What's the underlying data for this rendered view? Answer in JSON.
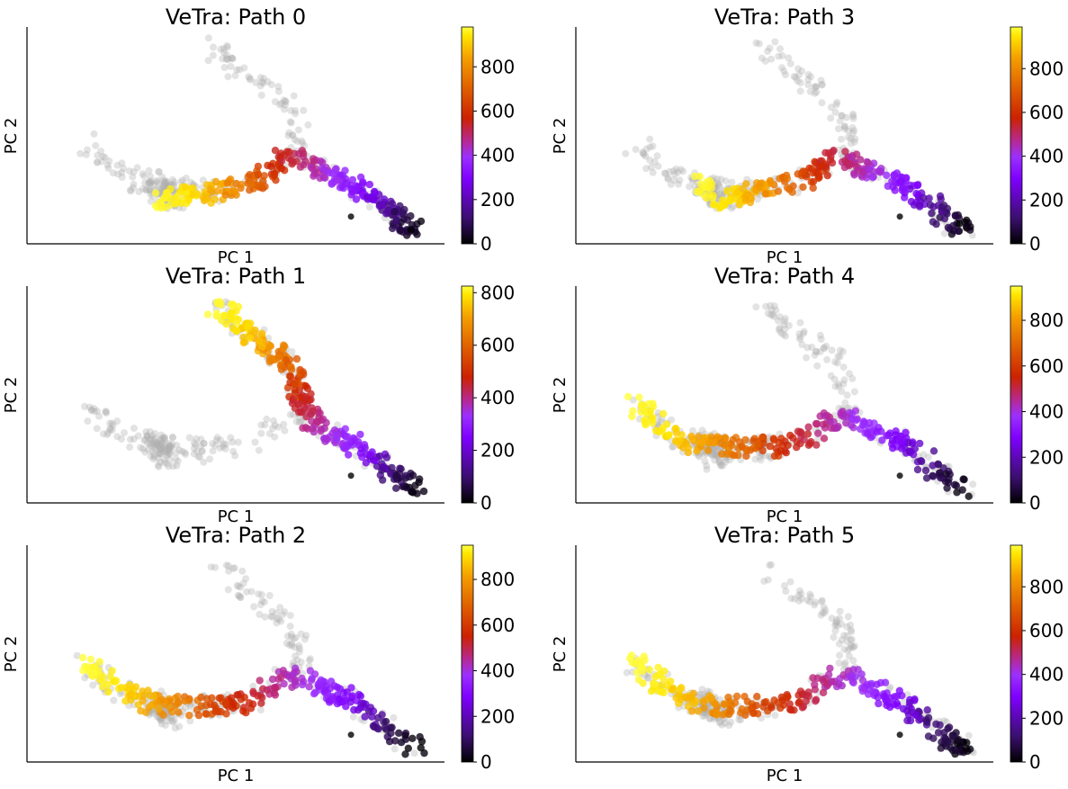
{
  "figure": {
    "colormap": [
      "#000000",
      "#3b0f70",
      "#7f00ff",
      "#9b30ff",
      "#b8288a",
      "#cc2200",
      "#e06000",
      "#f5a000",
      "#ffe600",
      "#ffff40"
    ],
    "background_color": "#b0b0b0",
    "root_color": "#333333"
  },
  "chart_data": [
    {
      "type": "scatter",
      "title": "VeTra: Path 0",
      "xlabel": "PC 1",
      "ylabel": "PC 2",
      "colorbar": {
        "range": [
          0,
          980
        ],
        "ticks": [
          0,
          200,
          400,
          600,
          800
        ]
      },
      "highlight_segments": [
        [
          [
            470,
            252
          ],
          [
            445,
            242
          ],
          [
            430,
            225
          ],
          [
            400,
            205
          ],
          [
            385,
            190
          ],
          [
            365,
            185
          ],
          [
            330,
            165
          ],
          [
            305,
            165
          ],
          [
            280,
            190
          ],
          [
            240,
            200
          ],
          [
            200,
            210
          ],
          [
            160,
            218
          ],
          [
            155,
            223
          ]
        ]
      ]
    },
    {
      "type": "scatter",
      "title": "VeTra: Path 1",
      "xlabel": "PC 1",
      "ylabel": "PC 2",
      "colorbar": {
        "range": [
          0,
          825
        ],
        "ticks": [
          0,
          200,
          400,
          600,
          800
        ]
      },
      "highlight_segments": [
        [
          [
            470,
            252
          ],
          [
            445,
            242
          ],
          [
            430,
            225
          ],
          [
            400,
            205
          ],
          [
            385,
            190
          ],
          [
            350,
            180
          ],
          [
            330,
            150
          ],
          [
            325,
            125
          ],
          [
            315,
            95
          ],
          [
            290,
            80
          ],
          [
            265,
            60
          ],
          [
            245,
            38
          ],
          [
            225,
            25
          ]
        ]
      ]
    },
    {
      "type": "scatter",
      "title": "VeTra: Path 2",
      "xlabel": "PC 1",
      "ylabel": "PC 2",
      "colorbar": {
        "range": [
          0,
          950
        ],
        "ticks": [
          0,
          200,
          400,
          600,
          800
        ]
      },
      "highlight_segments": [
        [
          [
            470,
            252
          ],
          [
            445,
            242
          ],
          [
            430,
            225
          ],
          [
            400,
            205
          ],
          [
            385,
            190
          ],
          [
            365,
            185
          ],
          [
            330,
            165
          ],
          [
            305,
            165
          ],
          [
            280,
            190
          ],
          [
            240,
            200
          ],
          [
            170,
            200
          ],
          [
            140,
            195
          ],
          [
            110,
            180
          ],
          [
            85,
            160
          ],
          [
            70,
            145
          ]
        ]
      ]
    },
    {
      "type": "scatter",
      "title": "VeTra: Path 3",
      "xlabel": "PC 1",
      "ylabel": "PC 2",
      "colorbar": {
        "range": [
          0,
          990
        ],
        "ticks": [
          0,
          200,
          400,
          600,
          800
        ]
      },
      "highlight_segments": [
        [
          [
            470,
            252
          ],
          [
            445,
            242
          ],
          [
            430,
            225
          ],
          [
            400,
            205
          ],
          [
            385,
            190
          ],
          [
            365,
            185
          ],
          [
            330,
            165
          ],
          [
            305,
            165
          ],
          [
            280,
            190
          ],
          [
            240,
            200
          ],
          [
            200,
            210
          ],
          [
            175,
            215
          ],
          [
            160,
            205
          ],
          [
            150,
            190
          ]
        ]
      ]
    },
    {
      "type": "scatter",
      "title": "VeTra: Path 4",
      "xlabel": "PC 1",
      "ylabel": "PC 2",
      "colorbar": {
        "range": [
          0,
          950
        ],
        "ticks": [
          0,
          200,
          400,
          600,
          800
        ]
      },
      "highlight_segments": [
        [
          [
            470,
            252
          ],
          [
            445,
            242
          ],
          [
            430,
            225
          ],
          [
            400,
            205
          ],
          [
            385,
            190
          ],
          [
            365,
            185
          ],
          [
            330,
            165
          ],
          [
            305,
            165
          ],
          [
            280,
            190
          ],
          [
            240,
            200
          ],
          [
            170,
            200
          ],
          [
            140,
            195
          ],
          [
            110,
            180
          ],
          [
            85,
            160
          ],
          [
            70,
            145
          ]
        ]
      ]
    },
    {
      "type": "scatter",
      "title": "VeTra: Path 5",
      "xlabel": "PC 1",
      "ylabel": "PC 2",
      "colorbar": {
        "range": [
          0,
          990
        ],
        "ticks": [
          0,
          200,
          400,
          600,
          800
        ]
      },
      "highlight_segments": [
        [
          [
            470,
            252
          ],
          [
            445,
            242
          ],
          [
            430,
            225
          ],
          [
            400,
            205
          ],
          [
            385,
            190
          ],
          [
            365,
            185
          ],
          [
            330,
            165
          ],
          [
            305,
            165
          ],
          [
            280,
            190
          ],
          [
            240,
            200
          ],
          [
            170,
            200
          ],
          [
            140,
            195
          ],
          [
            110,
            180
          ],
          [
            85,
            160
          ],
          [
            70,
            145
          ]
        ]
      ]
    }
  ]
}
